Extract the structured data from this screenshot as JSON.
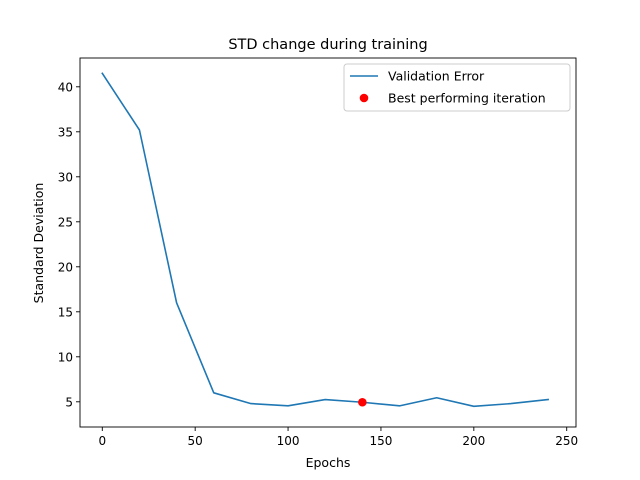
{
  "chart_data": {
    "type": "line",
    "title": "STD change during training",
    "xlabel": "Epochs",
    "ylabel": "Standard Deviation",
    "xlim": [
      -12,
      255
    ],
    "ylim": [
      2.2,
      43.2
    ],
    "xticks": [
      0,
      50,
      100,
      150,
      200,
      250
    ],
    "yticks": [
      5,
      10,
      15,
      20,
      25,
      30,
      35,
      40
    ],
    "grid": false,
    "legend_position": "top-right",
    "series": [
      {
        "name": "Validation Error",
        "color": "#1f77b4",
        "x": [
          0,
          20,
          40,
          60,
          80,
          100,
          120,
          140,
          160,
          180,
          200,
          220,
          240
        ],
        "y": [
          41.5,
          35.2,
          16.0,
          6.0,
          4.8,
          4.55,
          5.25,
          4.95,
          4.55,
          5.45,
          4.5,
          4.8,
          5.25
        ]
      }
    ],
    "points": [
      {
        "name": "Best performing iteration",
        "color": "#ff0000",
        "x": 140,
        "y": 4.95
      }
    ]
  }
}
